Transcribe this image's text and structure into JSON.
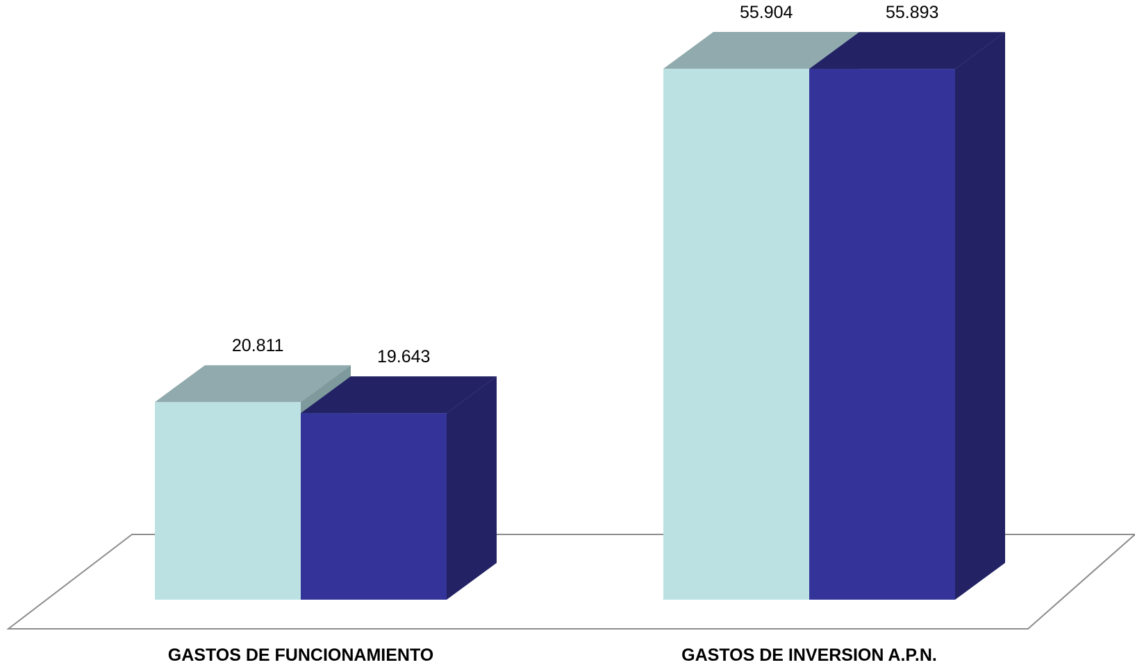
{
  "chart_data": {
    "type": "bar",
    "style": "3d-clustered-column",
    "categories": [
      "GASTOS DE FUNCIONAMIENTO",
      "GASTOS DE INVERSION A.P.N."
    ],
    "series": [
      {
        "values": [
          20.811,
          55.904
        ],
        "value_labels": [
          "20.811",
          "55.904"
        ],
        "color": "#BBE1E3"
      },
      {
        "values": [
          19.643,
          55.893
        ],
        "value_labels": [
          "19.643",
          "55.893"
        ],
        "color": "#333399"
      }
    ],
    "ylim": [
      0,
      60
    ],
    "grid": false,
    "legend": "none"
  }
}
